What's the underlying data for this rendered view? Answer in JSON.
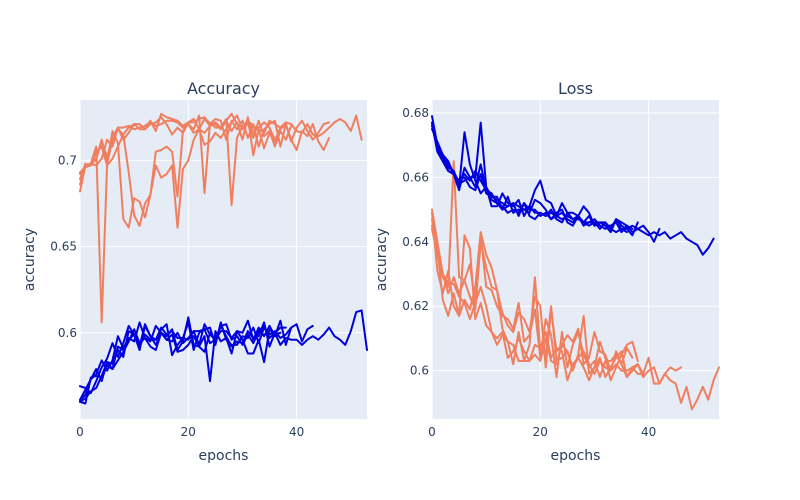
{
  "chart_data": [
    {
      "type": "line",
      "title": "Accuracy",
      "xlabel": "epochs",
      "ylabel": "accuracy",
      "xlim": [
        0,
        53
      ],
      "ylim": [
        0.55,
        0.735
      ],
      "xticks": [
        0,
        20,
        40
      ],
      "yticks": [
        0.6,
        0.65,
        0.7
      ],
      "ytick_labels": [
        "0.6",
        "0.65",
        "0.7"
      ],
      "grid": true,
      "legend": "none",
      "series": [
        {
          "color": "#ef7f5f",
          "values": [
            0.682,
            0.697,
            0.698,
            0.697,
            0.701,
            0.712,
            0.708,
            0.719,
            0.719,
            0.72,
            0.718,
            0.719,
            0.72,
            0.722,
            0.72,
            0.721,
            0.723,
            0.723,
            0.722,
            0.719,
            0.721,
            0.716,
            0.718,
            0.724,
            0.72,
            0.721,
            0.718,
            0.723,
            0.727,
            0.721,
            0.719,
            0.723,
            0.72,
            0.718,
            0.716,
            0.723,
            0.721,
            0.719,
            0.722,
            0.721,
            0.717,
            0.716,
            0.721,
            0.715,
            0.714,
            0.716,
            0.719,
            0.722,
            0.724,
            0.722,
            0.717,
            0.726,
            0.712
          ]
        },
        {
          "color": "#ef7f5f",
          "values": [
            0.692,
            0.697,
            0.698,
            0.708,
            0.606,
            0.698,
            0.712,
            0.718,
            0.715,
            0.719,
            0.721,
            0.721,
            0.718,
            0.723,
            0.717,
            0.727,
            0.725,
            0.724,
            0.723,
            0.72,
            0.722,
            0.722,
            0.724,
            0.725,
            0.721,
            0.724,
            0.723,
            0.712,
            0.723,
            0.718,
            0.723,
            0.713,
            0.721,
            0.708,
            0.718,
            0.721,
            0.723,
            0.708,
            0.721,
            0.712,
            0.706,
            0.717,
            0.714,
            0.721,
            0.711,
            0.706,
            0.713
          ]
        },
        {
          "color": "#ef7f5f",
          "values": [
            0.693,
            0.696,
            0.697,
            0.701,
            0.711,
            0.702,
            0.713,
            0.719,
            0.712,
            0.716,
            0.721,
            0.718,
            0.718,
            0.721,
            0.722,
            0.725,
            0.721,
            0.715,
            0.719,
            0.716,
            0.722,
            0.724,
            0.718,
            0.709,
            0.711,
            0.716,
            0.713,
            0.718,
            0.722,
            0.726,
            0.718,
            0.724,
            0.716,
            0.719,
            0.722,
            0.719,
            0.712,
            0.718,
            0.721,
            0.711,
            0.719,
            0.723,
            0.717,
            0.712,
            0.716,
            0.721,
            0.722
          ]
        },
        {
          "color": "#ef7f5f",
          "values": [
            0.686,
            0.697,
            0.698,
            0.701,
            0.712,
            0.699,
            0.717,
            0.71,
            0.666,
            0.661,
            0.678,
            0.676,
            0.667,
            0.68,
            0.705,
            0.706,
            0.708,
            0.705,
            0.679,
            0.717,
            0.721,
            0.718,
            0.726,
            0.681,
            0.722,
            0.719,
            0.719,
            0.724,
            0.674,
            0.713,
            0.72,
            0.721,
            0.713,
            0.723,
            0.714,
            0.717,
            0.708,
            0.717,
            0.712,
            0.72
          ]
        },
        {
          "color": "#ef7f5f",
          "values": [
            0.689,
            0.698,
            0.697,
            0.705,
            0.708,
            0.697,
            0.701,
            0.708,
            0.715,
            0.693,
            0.668,
            0.662,
            0.675,
            0.68,
            0.697,
            0.69,
            0.692,
            0.697,
            0.661,
            0.695,
            0.7,
            0.712,
            0.718,
            0.716,
            0.72,
            0.722,
            0.719,
            0.723,
            0.717,
            0.722,
            0.712,
            0.725,
            0.703,
            0.718,
            0.707,
            0.716,
            0.711,
            0.719
          ]
        },
        {
          "color": "#0000dd",
          "values": [
            0.569,
            0.568,
            0.565,
            0.572,
            0.58,
            0.585,
            0.594,
            0.586,
            0.594,
            0.604,
            0.599,
            0.592,
            0.599,
            0.596,
            0.596,
            0.603,
            0.599,
            0.601,
            0.597,
            0.597,
            0.596,
            0.601,
            0.601,
            0.602,
            0.594,
            0.596,
            0.604,
            0.605,
            0.596,
            0.598,
            0.593,
            0.599,
            0.594,
            0.601,
            0.604,
            0.597,
            0.6,
            0.593,
            0.597,
            0.596,
            0.596,
            0.593,
            0.596,
            0.598,
            0.596,
            0.599,
            0.603,
            0.598,
            0.596,
            0.593,
            0.601,
            0.612,
            0.613,
            0.59
          ]
        },
        {
          "color": "#0000dd",
          "values": [
            0.561,
            0.567,
            0.573,
            0.579,
            0.572,
            0.583,
            0.579,
            0.592,
            0.59,
            0.596,
            0.599,
            0.59,
            0.604,
            0.598,
            0.596,
            0.602,
            0.605,
            0.587,
            0.593,
            0.597,
            0.606,
            0.59,
            0.6,
            0.602,
            0.603,
            0.593,
            0.606,
            0.596,
            0.593,
            0.593,
            0.598,
            0.597,
            0.603,
            0.594,
            0.603,
            0.599,
            0.601,
            0.597,
            0.599,
            0.603,
            0.605,
            0.595,
            0.602,
            0.604
          ]
        },
        {
          "color": "#0000dd",
          "values": [
            0.561,
            0.564,
            0.573,
            0.576,
            0.584,
            0.578,
            0.584,
            0.598,
            0.591,
            0.597,
            0.595,
            0.606,
            0.597,
            0.595,
            0.604,
            0.6,
            0.596,
            0.595,
            0.6,
            0.594,
            0.597,
            0.601,
            0.593,
            0.605,
            0.599,
            0.596,
            0.601,
            0.601,
            0.597,
            0.601,
            0.6,
            0.607,
            0.596,
            0.603,
            0.598,
            0.604,
            0.598,
            0.607,
            0.593,
            0.603
          ]
        },
        {
          "color": "#0000dd",
          "values": [
            0.56,
            0.559,
            0.574,
            0.575,
            0.574,
            0.581,
            0.579,
            0.584,
            0.589,
            0.595,
            0.602,
            0.594,
            0.597,
            0.592,
            0.59,
            0.6,
            0.598,
            0.602,
            0.59,
            0.595,
            0.609,
            0.593,
            0.592,
            0.589,
            0.6,
            0.596,
            0.604,
            0.598,
            0.592,
            0.595,
            0.594,
            0.601,
            0.597,
            0.598,
            0.606,
            0.592,
            0.6,
            0.603,
            0.603
          ]
        },
        {
          "color": "#0000dd",
          "values": [
            0.56,
            0.562,
            0.566,
            0.568,
            0.575,
            0.583,
            0.582,
            0.59,
            0.586,
            0.601,
            0.599,
            0.592,
            0.605,
            0.598,
            0.593,
            0.6,
            0.596,
            0.599,
            0.589,
            0.59,
            0.593,
            0.598,
            0.592,
            0.598,
            0.572,
            0.601,
            0.595,
            0.597,
            0.588,
            0.601,
            0.596,
            0.588,
            0.588,
            0.596,
            0.583,
            0.602,
            0.599,
            0.6
          ]
        }
      ]
    },
    {
      "type": "line",
      "title": "Loss",
      "xlabel": "epochs",
      "ylabel": "accuracy",
      "xlim": [
        0,
        53
      ],
      "ylim": [
        0.585,
        0.684
      ],
      "xticks": [
        0,
        20,
        40
      ],
      "yticks": [
        0.6,
        0.62,
        0.64,
        0.66,
        0.68
      ],
      "ytick_labels": [
        "0.6",
        "0.62",
        "0.64",
        "0.66",
        "0.68"
      ],
      "grid": true,
      "legend": "none",
      "series": [
        {
          "color": "#ef7f5f",
          "values": [
            0.65,
            0.64,
            0.63,
            0.627,
            0.627,
            0.623,
            0.621,
            0.616,
            0.621,
            0.626,
            0.62,
            0.612,
            0.61,
            0.612,
            0.604,
            0.606,
            0.61,
            0.606,
            0.603,
            0.605,
            0.603,
            0.61,
            0.603,
            0.602,
            0.608,
            0.606,
            0.601,
            0.604,
            0.606,
            0.602,
            0.599,
            0.603,
            0.601,
            0.6,
            0.602,
            0.6,
            0.6,
            0.601,
            0.599,
            0.599,
            0.604,
            0.596,
            0.596,
            0.599,
            0.597,
            0.596,
            0.59,
            0.595,
            0.588,
            0.591,
            0.595,
            0.591,
            0.597,
            0.601
          ]
        },
        {
          "color": "#ef7f5f",
          "values": [
            0.647,
            0.637,
            0.629,
            0.626,
            0.665,
            0.629,
            0.628,
            0.633,
            0.621,
            0.642,
            0.626,
            0.625,
            0.62,
            0.617,
            0.616,
            0.613,
            0.621,
            0.609,
            0.611,
            0.619,
            0.604,
            0.616,
            0.611,
            0.598,
            0.612,
            0.601,
            0.608,
            0.612,
            0.605,
            0.601,
            0.603,
            0.598,
            0.603,
            0.603,
            0.605,
            0.602,
            0.598,
            0.601,
            0.602,
            0.598,
            0.6,
            0.601,
            0.596,
            0.599,
            0.601,
            0.6,
            0.601
          ]
        },
        {
          "color": "#ef7f5f",
          "values": [
            0.644,
            0.636,
            0.63,
            0.624,
            0.629,
            0.624,
            0.628,
            0.623,
            0.619,
            0.64,
            0.632,
            0.626,
            0.625,
            0.613,
            0.609,
            0.608,
            0.603,
            0.603,
            0.603,
            0.608,
            0.607,
            0.612,
            0.604,
            0.607,
            0.606,
            0.597,
            0.602,
            0.604,
            0.601,
            0.597,
            0.601,
            0.604,
            0.598,
            0.601,
            0.604,
            0.606,
            0.598,
            0.6,
            0.602,
            0.599
          ]
        },
        {
          "color": "#ef7f5f",
          "values": [
            0.645,
            0.638,
            0.622,
            0.617,
            0.624,
            0.617,
            0.642,
            0.638,
            0.616,
            0.621,
            0.614,
            0.612,
            0.608,
            0.611,
            0.609,
            0.602,
            0.612,
            0.603,
            0.608,
            0.629,
            0.606,
            0.605,
            0.62,
            0.603,
            0.604,
            0.606,
            0.6,
            0.605,
            0.617,
            0.599,
            0.601,
            0.609,
            0.604,
            0.597,
            0.601,
            0.605,
            0.608,
            0.609,
            0.603
          ]
        },
        {
          "color": "#ef7f5f",
          "values": [
            0.649,
            0.631,
            0.624,
            0.631,
            0.62,
            0.617,
            0.622,
            0.619,
            0.626,
            0.643,
            0.636,
            0.632,
            0.625,
            0.618,
            0.614,
            0.612,
            0.618,
            0.616,
            0.612,
            0.623,
            0.62,
            0.601,
            0.619,
            0.606,
            0.608,
            0.611,
            0.609,
            0.613,
            0.602,
            0.604,
            0.612,
            0.606,
            0.605,
            0.6,
            0.606,
            0.602,
            0.607,
            0.604
          ]
        },
        {
          "color": "#0000dd",
          "values": [
            0.679,
            0.67,
            0.667,
            0.665,
            0.661,
            0.659,
            0.66,
            0.657,
            0.656,
            0.661,
            0.655,
            0.654,
            0.653,
            0.652,
            0.651,
            0.652,
            0.651,
            0.65,
            0.651,
            0.649,
            0.649,
            0.648,
            0.649,
            0.648,
            0.647,
            0.648,
            0.647,
            0.647,
            0.646,
            0.646,
            0.646,
            0.646,
            0.645,
            0.645,
            0.646,
            0.644,
            0.644,
            0.645,
            0.644,
            0.643,
            0.642,
            0.643,
            0.642,
            0.643,
            0.641,
            0.642,
            0.643,
            0.641,
            0.64,
            0.639,
            0.636,
            0.638,
            0.641
          ]
        },
        {
          "color": "#0000dd",
          "values": [
            0.677,
            0.668,
            0.665,
            0.662,
            0.661,
            0.657,
            0.674,
            0.664,
            0.659,
            0.655,
            0.657,
            0.651,
            0.651,
            0.655,
            0.652,
            0.651,
            0.653,
            0.648,
            0.651,
            0.656,
            0.659,
            0.653,
            0.652,
            0.648,
            0.652,
            0.649,
            0.649,
            0.648,
            0.646,
            0.648,
            0.645,
            0.646,
            0.646,
            0.644,
            0.647,
            0.646,
            0.645,
            0.643,
            0.644,
            0.645,
            0.643,
            0.64,
            0.644
          ]
        },
        {
          "color": "#0000dd",
          "values": [
            0.675,
            0.671,
            0.667,
            0.664,
            0.661,
            0.656,
            0.663,
            0.66,
            0.657,
            0.664,
            0.656,
            0.653,
            0.652,
            0.65,
            0.654,
            0.649,
            0.65,
            0.65,
            0.649,
            0.653,
            0.652,
            0.65,
            0.647,
            0.649,
            0.65,
            0.646,
            0.645,
            0.648,
            0.651,
            0.649,
            0.645,
            0.646,
            0.645,
            0.643,
            0.647,
            0.645,
            0.644,
            0.642,
            0.646
          ]
        },
        {
          "color": "#0000dd",
          "values": [
            0.676,
            0.669,
            0.666,
            0.663,
            0.662,
            0.658,
            0.659,
            0.66,
            0.66,
            0.677,
            0.657,
            0.654,
            0.654,
            0.65,
            0.651,
            0.652,
            0.648,
            0.652,
            0.65,
            0.65,
            0.648,
            0.649,
            0.647,
            0.648,
            0.649,
            0.647,
            0.646,
            0.648,
            0.646,
            0.645,
            0.646,
            0.644,
            0.646,
            0.644,
            0.643,
            0.644,
            0.643
          ]
        },
        {
          "color": "#0000dd",
          "values": [
            0.677,
            0.668,
            0.665,
            0.662,
            0.661,
            0.659,
            0.661,
            0.659,
            0.662,
            0.659,
            0.656,
            0.655,
            0.652,
            0.651,
            0.649,
            0.65,
            0.649,
            0.652,
            0.648,
            0.647,
            0.649,
            0.648,
            0.65,
            0.647,
            0.646,
            0.649,
            0.647,
            0.648,
            0.645,
            0.646,
            0.647,
            0.645,
            0.644,
            0.645,
            0.646,
            0.643,
            0.645,
            0.644
          ]
        }
      ]
    }
  ]
}
